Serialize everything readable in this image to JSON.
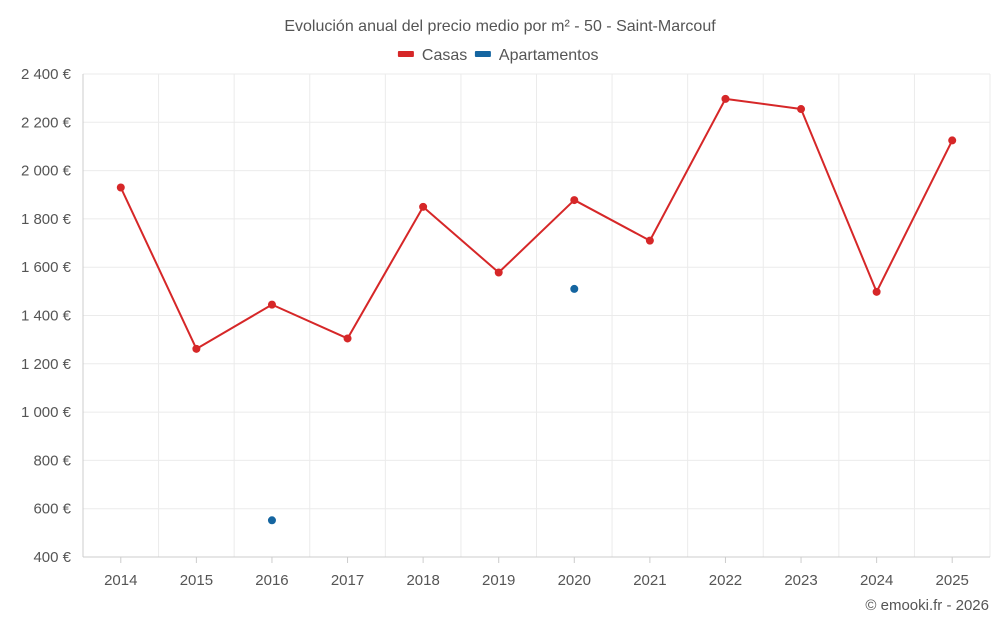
{
  "chart_data": {
    "type": "line",
    "title": "Evolución anual del precio medio por m² - 50 - Saint-Marcouf",
    "x": [
      "2014",
      "2015",
      "2016",
      "2017",
      "2018",
      "2019",
      "2020",
      "2021",
      "2022",
      "2023",
      "2024",
      "2025"
    ],
    "series": [
      {
        "name": "Casas",
        "color": "#d62728",
        "values": [
          1930,
          1262,
          1445,
          1305,
          1850,
          1578,
          1878,
          1710,
          2297,
          2255,
          1498,
          2125
        ]
      },
      {
        "name": "Apartamentos",
        "color": "#1565a0",
        "values": [
          null,
          null,
          552,
          null,
          null,
          null,
          1510,
          null,
          null,
          null,
          null,
          null
        ]
      }
    ],
    "ylim": [
      400,
      2400
    ],
    "yticks": [
      400,
      600,
      800,
      1000,
      1200,
      1400,
      1600,
      1800,
      2000,
      2200,
      2400
    ],
    "ytick_labels": [
      "400 €",
      "600 €",
      "800 €",
      "1 000 €",
      "1 200 €",
      "1 400 €",
      "1 600 €",
      "1 800 €",
      "2 000 €",
      "2 200 €",
      "2 400 €"
    ],
    "xlabel": "",
    "ylabel": "",
    "grid": true,
    "legend_position": "top-center"
  },
  "footer": "© emooki.fr - 2026"
}
